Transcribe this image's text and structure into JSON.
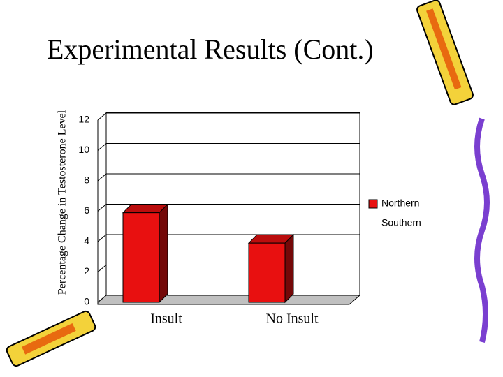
{
  "chart_data": {
    "type": "bar",
    "title": "Experimental Results (Cont.)",
    "y_label": "Percentage Change in Testosterone Level",
    "categories": [
      "Insult",
      "No Insult"
    ],
    "series": [
      {
        "name": "Northern",
        "color": "#e81010",
        "values": [
          5.9,
          3.9
        ]
      },
      {
        "name": "Southern",
        "color": "#ffffff",
        "values": [
          null,
          null
        ]
      }
    ],
    "ylim": [
      0,
      12
    ],
    "yticks": [
      0,
      2,
      4,
      6,
      8,
      10,
      12
    ],
    "grid": true,
    "legend": "right"
  }
}
